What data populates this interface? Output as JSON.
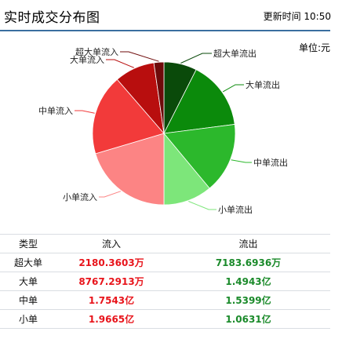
{
  "header": {
    "title": "实时成交分布图",
    "update_label": "更新时间",
    "update_time": "10:50"
  },
  "unit_label": "单位:元",
  "colors": {
    "super_in": "#6e0a0a",
    "big_in": "#b80e0e",
    "mid_in": "#f23a3a",
    "small_in": "#fc8484",
    "small_out": "#7de67a",
    "mid_out": "#2cb82c",
    "big_out": "#0b8a0b",
    "super_out": "#0a4a0a"
  },
  "chart_data": {
    "type": "pie",
    "slices": [
      {
        "label": "超大单流出",
        "value": 7183.6936,
        "color_key": "super_out"
      },
      {
        "label": "大单流出",
        "value": 14943,
        "color_key": "big_out"
      },
      {
        "label": "中单流出",
        "value": 15399,
        "color_key": "mid_out"
      },
      {
        "label": "小单流出",
        "value": 10631,
        "color_key": "small_out"
      },
      {
        "label": "小单流入",
        "value": 19665,
        "color_key": "small_in"
      },
      {
        "label": "中单流入",
        "value": 17543,
        "color_key": "mid_in"
      },
      {
        "label": "大单流入",
        "value": 8767.2913,
        "color_key": "big_in"
      },
      {
        "label": "超大单流入",
        "value": 2180.3603,
        "color_key": "super_in"
      }
    ]
  },
  "table": {
    "headers": [
      "类型",
      "流入",
      "流出"
    ],
    "rows": [
      {
        "type": "超大单",
        "in": "2180.3603万",
        "out": "7183.6936万"
      },
      {
        "type": "大单",
        "in": "8767.2913万",
        "out": "1.4943亿"
      },
      {
        "type": "中单",
        "in": "1.7543亿",
        "out": "1.5399亿"
      },
      {
        "type": "小单",
        "in": "1.9665亿",
        "out": "1.0631亿"
      }
    ]
  }
}
